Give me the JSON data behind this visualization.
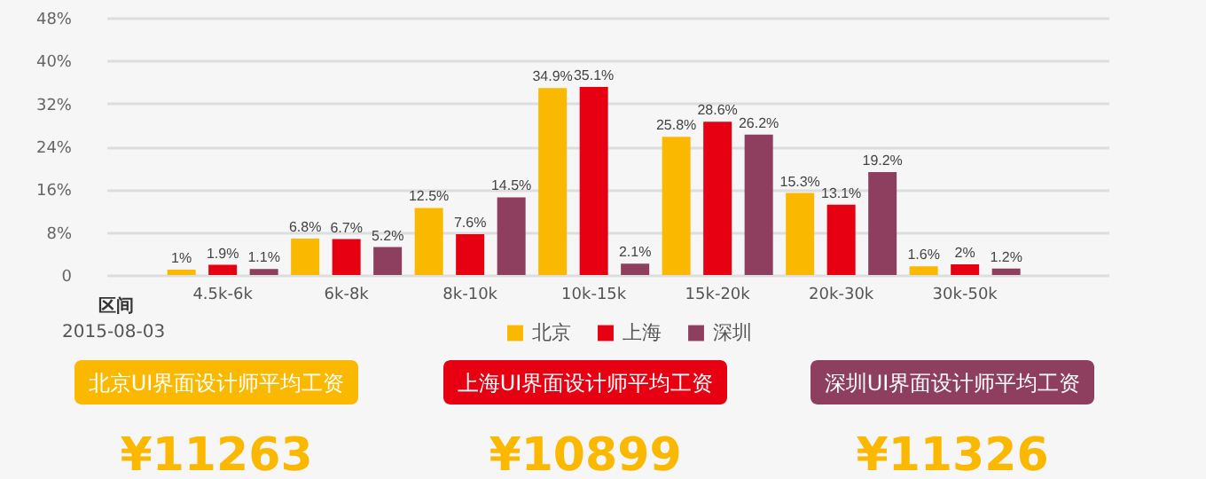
{
  "chart_data": {
    "type": "bar",
    "xlabel": "区间",
    "categories": [
      "4.5k-6k",
      "6k-8k",
      "8k-10k",
      "10k-15k",
      "15k-20k",
      "20k-30k",
      "30k-50k"
    ],
    "series": [
      {
        "name": "北京",
        "color": "#fbb800",
        "values": [
          1,
          6.8,
          12.5,
          34.9,
          25.8,
          15.3,
          1.6
        ],
        "value_labels": [
          "1%",
          "6.8%",
          "12.5%",
          "34.9%",
          "25.8%",
          "15.3%",
          "1.6%"
        ]
      },
      {
        "name": "上海",
        "color": "#e60012",
        "values": [
          1.9,
          6.7,
          7.6,
          35.1,
          28.6,
          13.1,
          2
        ],
        "value_labels": [
          "1.9%",
          "6.7%",
          "7.6%",
          "35.1%",
          "28.6%",
          "13.1%",
          "2%"
        ]
      },
      {
        "name": "深圳",
        "color": "#8e3e5f",
        "values": [
          1.1,
          5.2,
          14.5,
          2.1,
          26.2,
          19.2,
          1.2
        ],
        "value_labels": [
          "1.1%",
          "5.2%",
          "14.5%",
          "2.1%",
          "26.2%",
          "19.2%",
          "1.2%"
        ]
      }
    ],
    "ylim": [
      0,
      48
    ],
    "yticks": [
      0,
      {
        "value": 8,
        "label": "8%"
      },
      {
        "value": 16,
        "label": "16%"
      },
      {
        "value": 24,
        "label": "24%"
      },
      {
        "value": 32,
        "label": "32%"
      },
      {
        "value": 40,
        "label": "40%"
      },
      {
        "value": 48,
        "label": "48%"
      }
    ],
    "grid": "y",
    "legend": "bottom",
    "annotations": [
      "2015-08-03",
      "北京UI界面设计师平均工资",
      "上海UI界面设计师平均工资",
      "深圳UI界面设计师平均工资",
      "¥11263",
      "¥10899",
      "¥11326"
    ]
  }
}
